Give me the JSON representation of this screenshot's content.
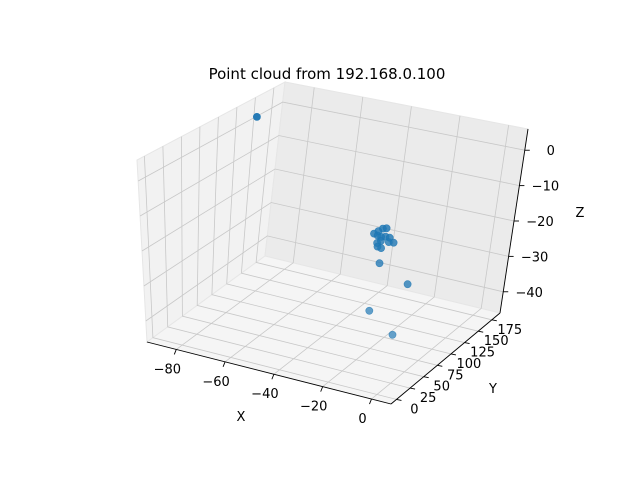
{
  "chart_data": {
    "type": "scatter",
    "title": "Point cloud from 192.168.0.100",
    "xlabel": "X",
    "ylabel": "Y",
    "zlabel": "Z",
    "x_ticks": [
      -80,
      -60,
      -40,
      -20,
      0
    ],
    "y_ticks": [
      0,
      25,
      50,
      75,
      100,
      125,
      150,
      175
    ],
    "z_ticks": [
      0,
      -10,
      -20,
      -30,
      -40
    ],
    "xlim": [
      -92,
      8
    ],
    "ylim": [
      -10,
      190
    ],
    "zlim": [
      -46,
      6
    ],
    "grid": true,
    "color": "#1f77b4",
    "points": [
      {
        "x": -88,
        "y": 140,
        "z": 2
      },
      {
        "x": -28,
        "y": 110,
        "z": -20
      },
      {
        "x": -27,
        "y": 112,
        "z": -20.5
      },
      {
        "x": -26,
        "y": 108,
        "z": -21
      },
      {
        "x": -29,
        "y": 115,
        "z": -19.5
      },
      {
        "x": -25,
        "y": 111,
        "z": -20
      },
      {
        "x": -27,
        "y": 106,
        "z": -21.5
      },
      {
        "x": -24,
        "y": 114,
        "z": -20.5
      },
      {
        "x": -28,
        "y": 118,
        "z": -19
      },
      {
        "x": -26,
        "y": 103,
        "z": -22
      },
      {
        "x": -23,
        "y": 109,
        "z": -21
      },
      {
        "x": -30,
        "y": 112,
        "z": -20
      },
      {
        "x": -22,
        "y": 113,
        "z": -21.5
      },
      {
        "x": -27,
        "y": 120,
        "z": -19
      },
      {
        "x": -25,
        "y": 105,
        "z": -22.5
      },
      {
        "x": -24,
        "y": 100,
        "z": -26
      },
      {
        "x": -12,
        "y": 100,
        "z": -30
      },
      {
        "x": -20,
        "y": 70,
        "z": -35
      },
      {
        "x": -10,
        "y": 70,
        "z": -40
      }
    ]
  }
}
